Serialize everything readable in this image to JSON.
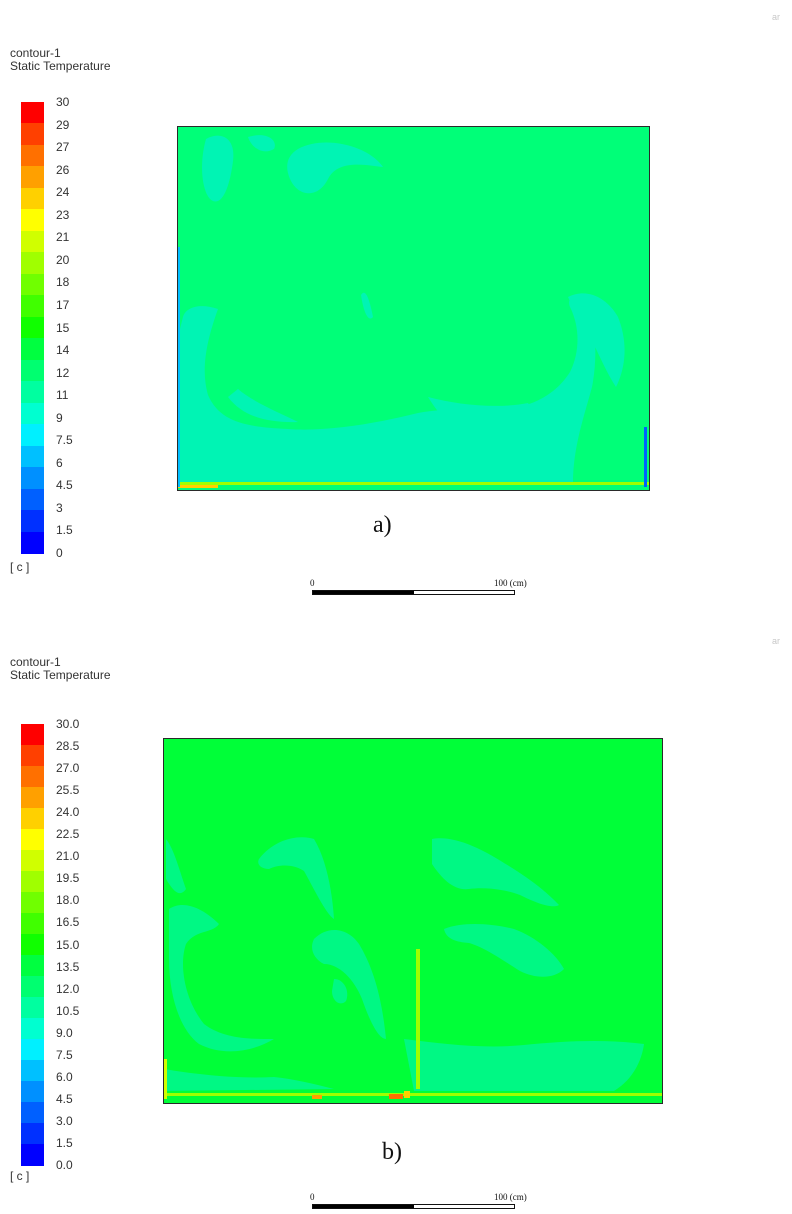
{
  "palette": [
    "#0000ff",
    "#0030ff",
    "#0060ff",
    "#0090ff",
    "#00c0ff",
    "#00f0ff",
    "#00ffd0",
    "#00ffa0",
    "#00ff70",
    "#00ff40",
    "#10ff00",
    "#40ff00",
    "#70ff00",
    "#a0ff00",
    "#d0ff00",
    "#ffff00",
    "#ffd000",
    "#ffa000",
    "#ff7000",
    "#ff4000",
    "#ff0000"
  ],
  "panels": [
    {
      "logo": "ar",
      "contour_name": "contour-1",
      "variable": "Static Temperature",
      "legend_labels": [
        "30",
        "29",
        "27",
        "26",
        "24",
        "23",
        "21",
        "20",
        "18",
        "17",
        "15",
        "14",
        "12",
        "11",
        "9",
        "7.5",
        "6",
        "4.5",
        "3",
        "1.5",
        "0"
      ],
      "unit": "[ c ]",
      "caption": "a)",
      "scale_bar": {
        "start": "0",
        "end": "100 (cm)"
      },
      "field_color": "#00ff78",
      "region_color": "#00f4b4"
    },
    {
      "logo": "ar",
      "contour_name": "contour-1",
      "variable": "Static Temperature",
      "legend_labels": [
        "30.0",
        "28.5",
        "27.0",
        "25.5",
        "24.0",
        "22.5",
        "21.0",
        "19.5",
        "18.0",
        "16.5",
        "15.0",
        "13.5",
        "12.0",
        "10.5",
        "9.0",
        "7.5",
        "6.0",
        "4.5",
        "3.0",
        "1.5",
        "0.0"
      ],
      "unit": "[ c ]",
      "caption": "b)",
      "scale_bar": {
        "start": "0",
        "end": "100 (cm)"
      },
      "field_color": "#00ff38",
      "region_color": "#00f884"
    }
  ]
}
